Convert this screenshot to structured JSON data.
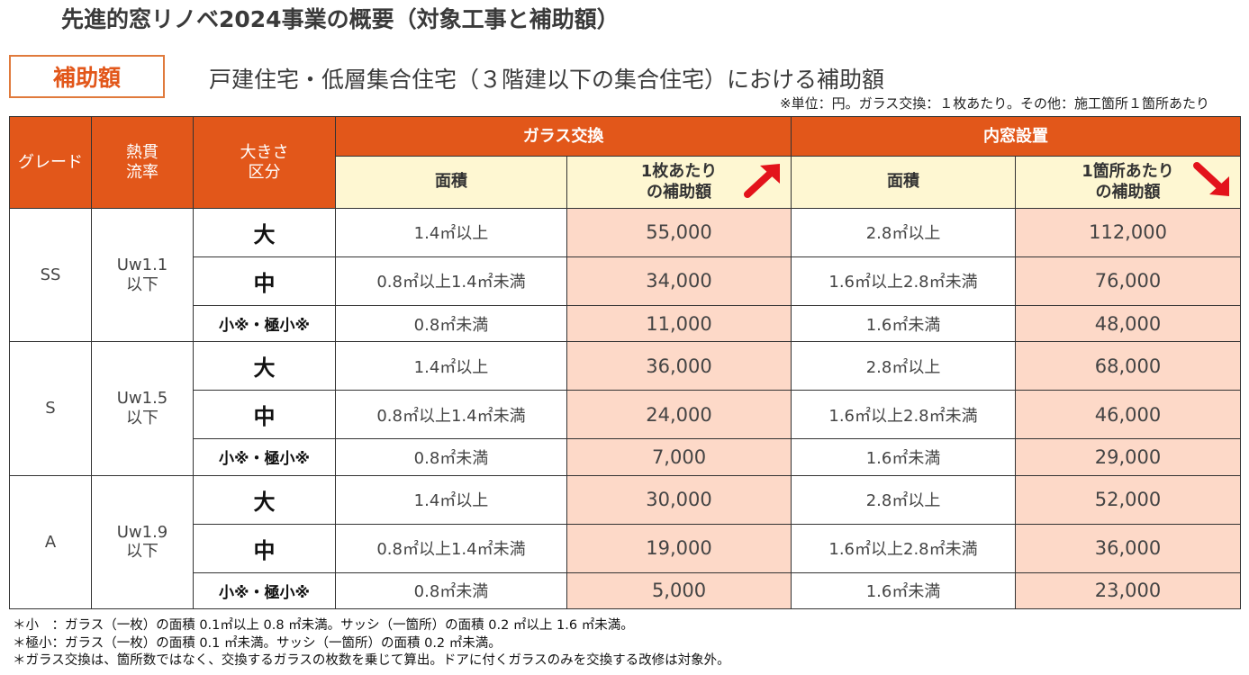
{
  "title": "先進的窓リノベ2024事業の概要（対象工事と補助額）",
  "badge": "補助額",
  "subtitle": "戸建住宅・低層集合住宅（３階建以下の集合住宅）における補助額",
  "unit_note": "※単位：円。ガラス交換：１枚あたり。その他：施工箇所１箇所あたり",
  "headers": {
    "grade": "グレード",
    "uw": [
      "熱貫",
      "流率"
    ],
    "size": [
      "大きさ",
      "区分"
    ],
    "glass": "ガラス交換",
    "inner": "内窓設置",
    "area": "面積",
    "per_glass": [
      "1枚あたり",
      "の補助額"
    ],
    "per_place": [
      "1箇所あたり",
      "の補助額"
    ]
  },
  "arrow_color": "#e3131b",
  "rows": [
    {
      "grade": "SS",
      "uw": [
        "Uw1.1",
        "以下"
      ],
      "items": [
        {
          "size": "大",
          "glass_area": "1.4㎡以上",
          "glass_amt": "55,000",
          "inner_area": "2.8㎡以上",
          "inner_amt": "112,000"
        },
        {
          "size": "中",
          "glass_area": "0.8㎡以上1.4㎡未満",
          "glass_amt": "34,000",
          "inner_area": "1.6㎡以上2.8㎡未満",
          "inner_amt": "76,000"
        },
        {
          "size": "小※・極小※",
          "glass_area": "0.8㎡未満",
          "glass_amt": "11,000",
          "inner_area": "1.6㎡未満",
          "inner_amt": "48,000"
        }
      ]
    },
    {
      "grade": "S",
      "uw": [
        "Uw1.5",
        "以下"
      ],
      "items": [
        {
          "size": "大",
          "glass_area": "1.4㎡以上",
          "glass_amt": "36,000",
          "inner_area": "2.8㎡以上",
          "inner_amt": "68,000"
        },
        {
          "size": "中",
          "glass_area": "0.8㎡以上1.4㎡未満",
          "glass_amt": "24,000",
          "inner_area": "1.6㎡以上2.8㎡未満",
          "inner_amt": "46,000"
        },
        {
          "size": "小※・極小※",
          "glass_area": "0.8㎡未満",
          "glass_amt": "7,000",
          "inner_area": "1.6㎡未満",
          "inner_amt": "29,000"
        }
      ]
    },
    {
      "grade": "A",
      "uw": [
        "Uw1.9",
        "以下"
      ],
      "items": [
        {
          "size": "大",
          "glass_area": "1.4㎡以上",
          "glass_amt": "30,000",
          "inner_area": "2.8㎡以上",
          "inner_amt": "52,000"
        },
        {
          "size": "中",
          "glass_area": "0.8㎡以上1.4㎡未満",
          "glass_amt": "19,000",
          "inner_area": "1.6㎡以上2.8㎡未満",
          "inner_amt": "36,000"
        },
        {
          "size": "小※・極小※",
          "glass_area": "0.8㎡未満",
          "glass_amt": "5,000",
          "inner_area": "1.6㎡未満",
          "inner_amt": "23,000"
        }
      ]
    }
  ],
  "notes": [
    "＊小　：ガラス（一枚）の面積 0.1㎡以上 0.8 ㎡未満。サッシ（一箇所）の面積 0.2 ㎡以上 1.6 ㎡未満。",
    "＊極小：ガラス（一枚）の面積 0.1 ㎡未満。サッシ（一箇所）の面積 0.2 ㎡未満。",
    "＊ガラス交換は、箇所数ではなく、交換するガラスの枚数を乗じて算出。ドアに付くガラスのみを交換する改修は対象外。"
  ]
}
